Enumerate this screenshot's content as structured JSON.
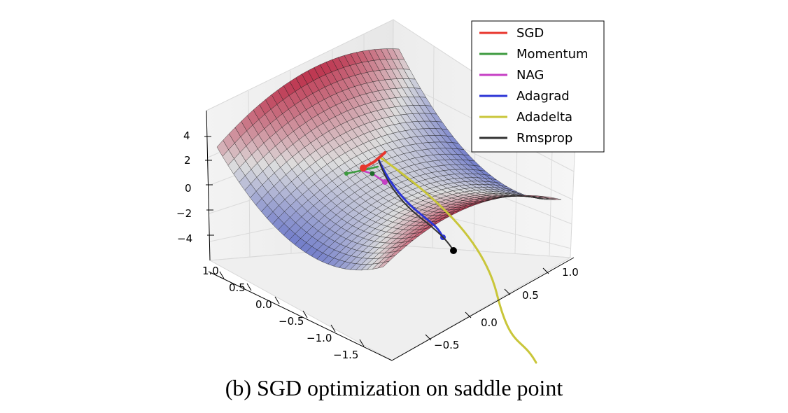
{
  "chart_data": {
    "type": "surface",
    "caption": "(b) SGD optimization on saddle point",
    "x_axis": {
      "ticks": [
        "−1.5",
        "−1.0",
        "−0.5",
        "0.0",
        "0.5",
        "1.0"
      ],
      "range": [
        -1.6,
        1.1
      ]
    },
    "y_axis": {
      "ticks": [
        "−0.5",
        "0.0",
        "0.5",
        "1.0"
      ],
      "range": [
        -0.9,
        1.1
      ]
    },
    "z_axis": {
      "ticks": [
        "−4",
        "−2",
        "0",
        "2",
        "4"
      ],
      "range": [
        -4.5,
        4.5
      ]
    },
    "surface": {
      "function": "z = x^2 - y^2",
      "colormap": "coolwarm",
      "grid": true
    },
    "legend_position": "top-right",
    "series": [
      {
        "name": "SGD",
        "color": "#e8352c"
      },
      {
        "name": "Momentum",
        "color": "#3d9a3f"
      },
      {
        "name": "NAG",
        "color": "#c63fc4"
      },
      {
        "name": "Adagrad",
        "color": "#2b34d6"
      },
      {
        "name": "Adadelta",
        "color": "#c9c63a"
      },
      {
        "name": "Rmsprop",
        "color": "#333333"
      }
    ]
  }
}
